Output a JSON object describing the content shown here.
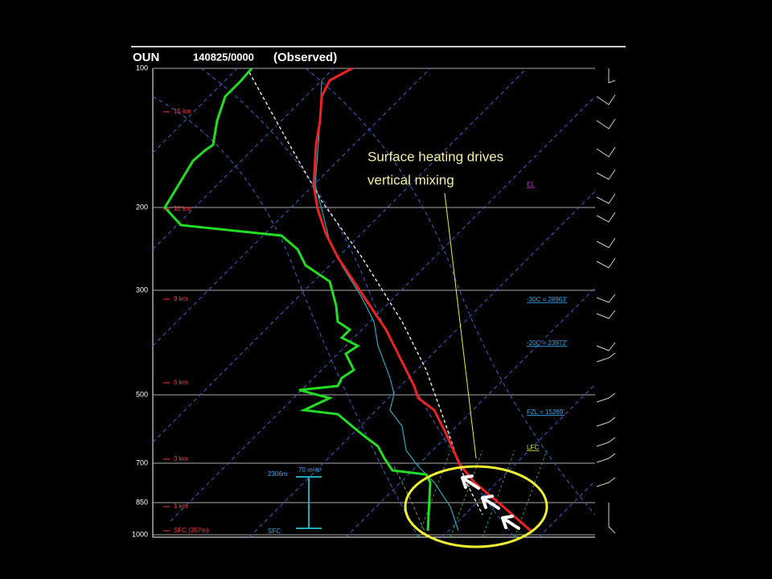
{
  "header": {
    "station": "OUN",
    "date": "140825/0000",
    "kind": "(Observed)"
  },
  "pressure_labels": [
    "100",
    "200",
    "300",
    "500",
    "700",
    "850",
    "1000"
  ],
  "height_labels": [
    "15 km",
    "12 km",
    "9 km",
    "6 km",
    "3 km",
    "1 km",
    "SFC (357m)"
  ],
  "level_labels": {
    "el": "EL",
    "minus30": "-30C = 28963'",
    "minus20": "-20C = 23972'",
    "fzl": "FZL = 15269'",
    "lfc": "LFC"
  },
  "helicity": {
    "top": "2306m",
    "value": "70 m²/s²",
    "bottom": "SFC"
  },
  "annotation": {
    "line1": "Surface heating drives",
    "line2": "vertical mixing"
  }
}
